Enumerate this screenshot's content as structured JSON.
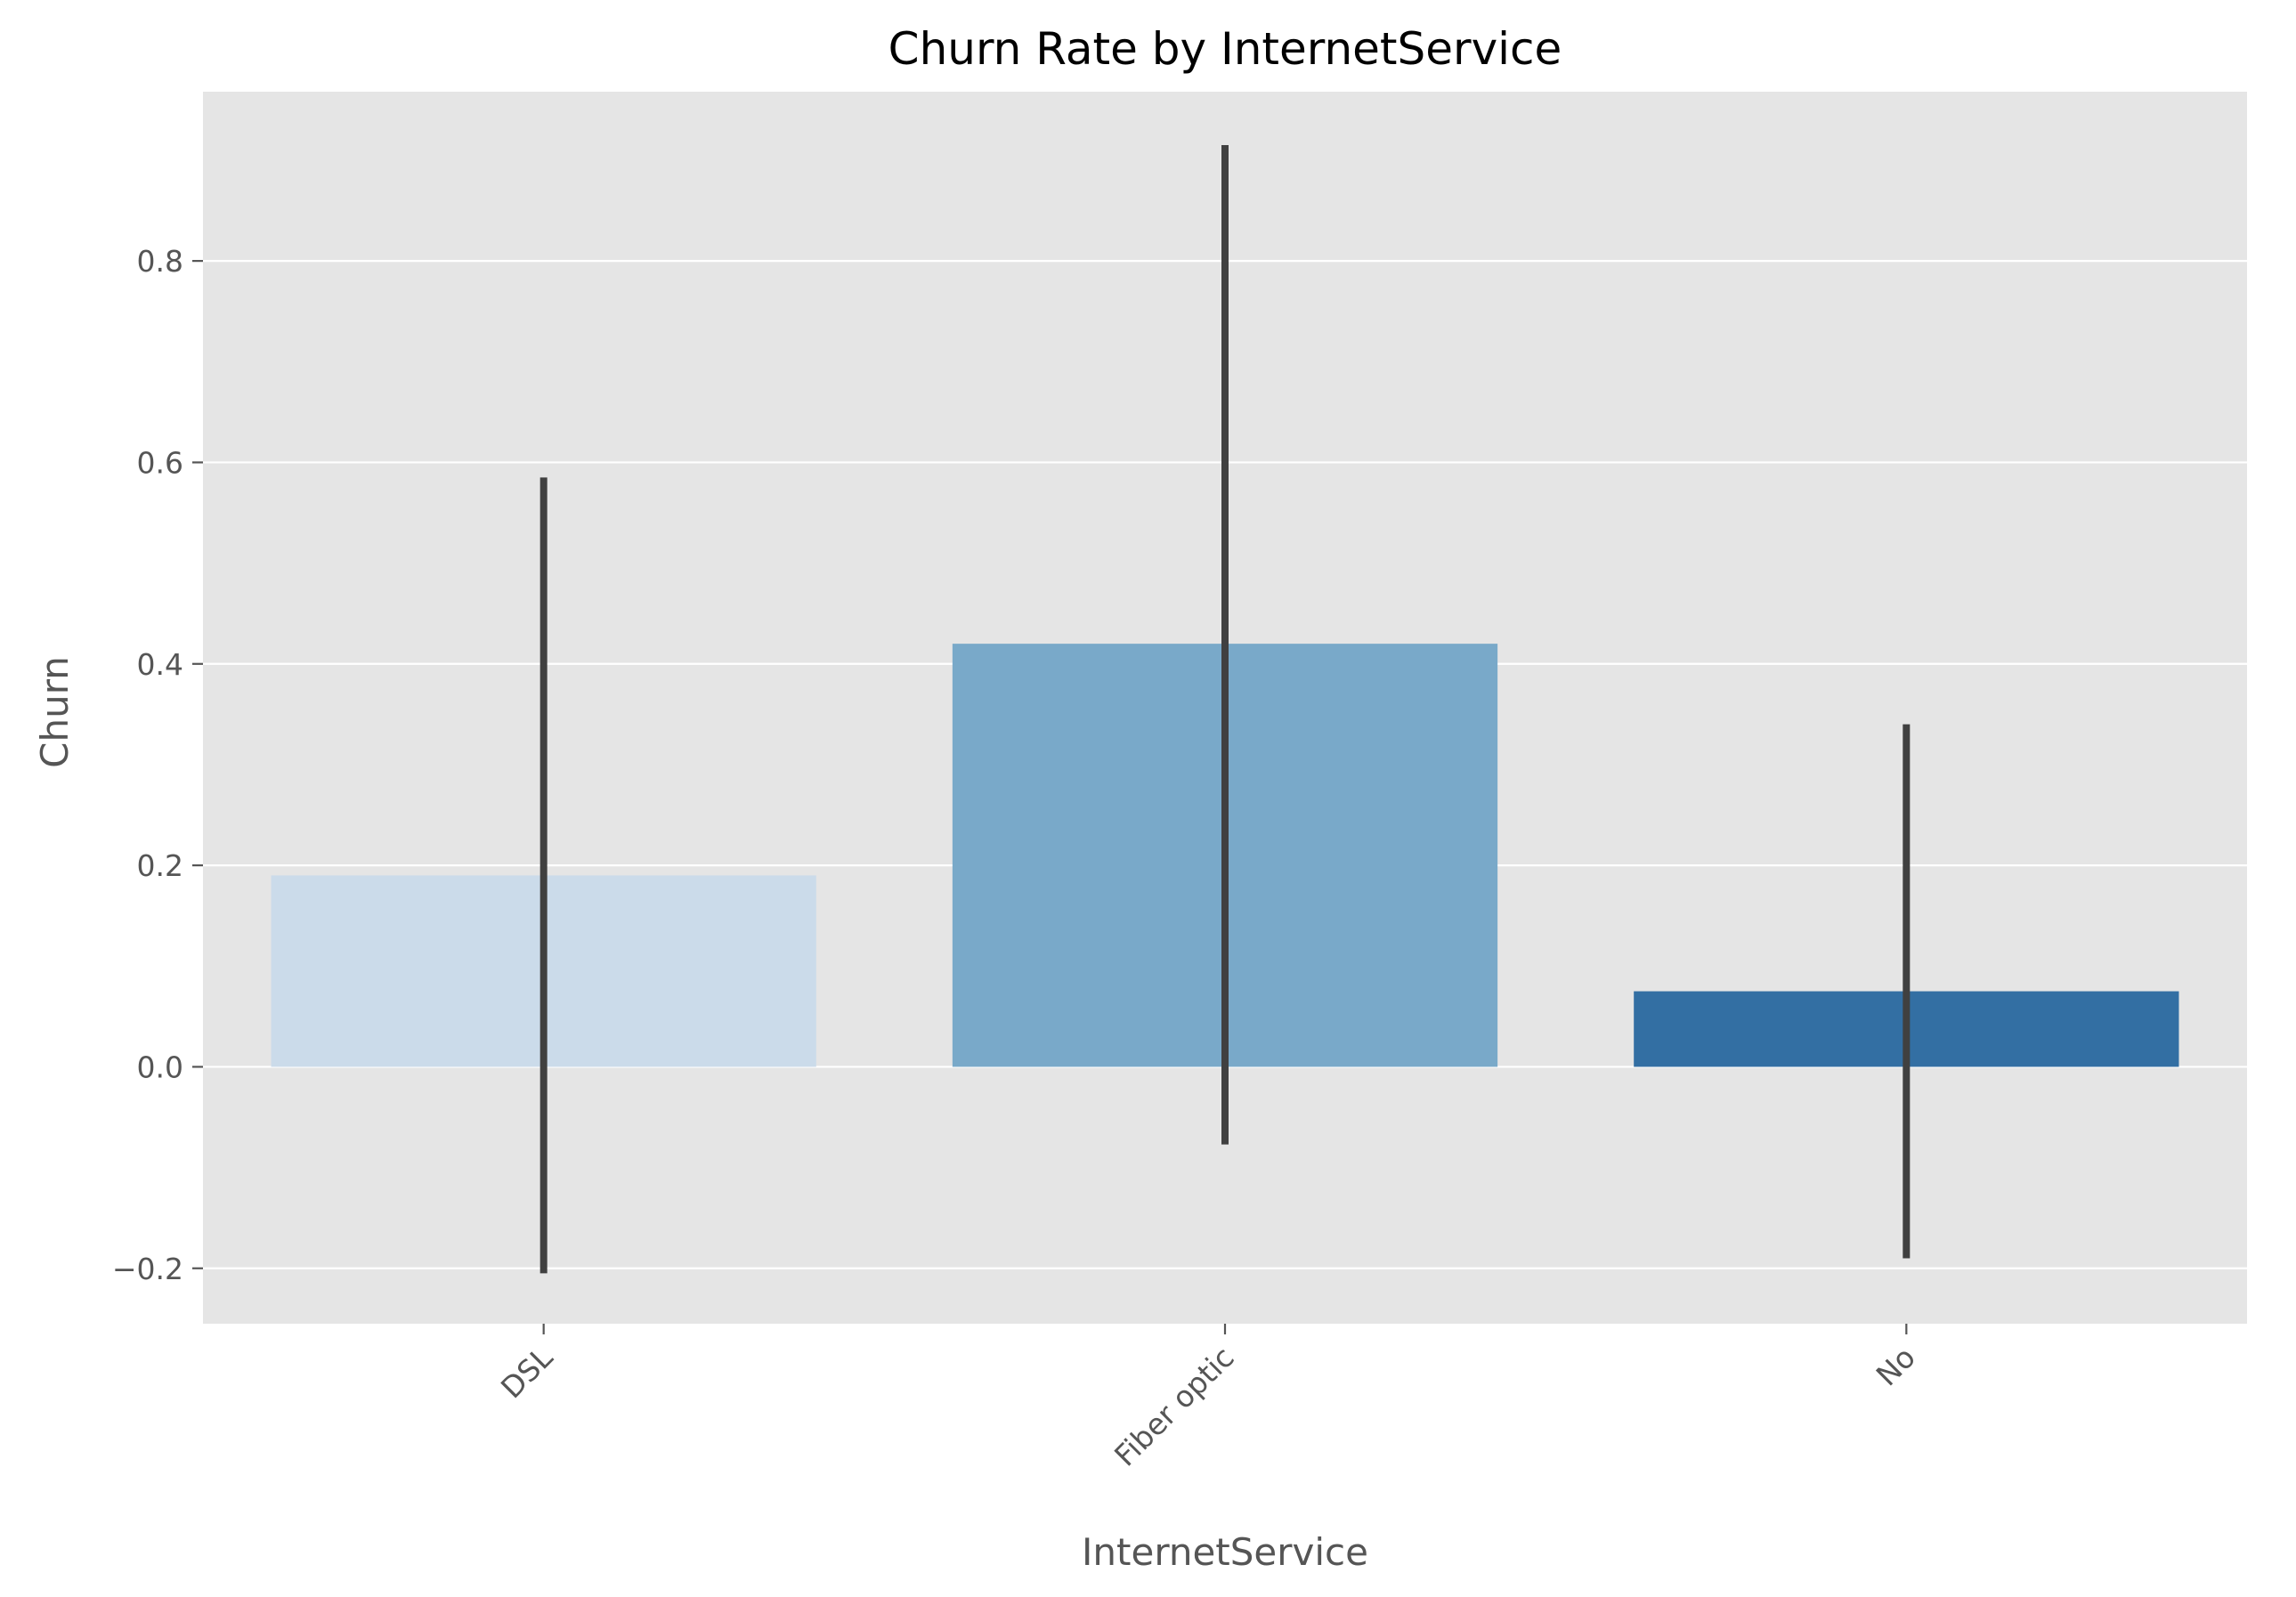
{
  "chart_data": {
    "type": "bar",
    "title": "Churn Rate by InternetService",
    "xlabel": "InternetService",
    "ylabel": "Churn",
    "categories": [
      "DSL",
      "Fiber optic",
      "No"
    ],
    "values": [
      0.19,
      0.42,
      0.075
    ],
    "error_bars": [
      {
        "low": -0.205,
        "high": 0.585
      },
      {
        "low": -0.077,
        "high": 0.915
      },
      {
        "low": -0.19,
        "high": 0.34
      }
    ],
    "bar_colors": [
      "#cbdbea",
      "#79a9c9",
      "#336fa3"
    ],
    "error_bar_color": "#404040",
    "ylim": [
      -0.255,
      0.968
    ],
    "yticks": [
      -0.2,
      0.0,
      0.2,
      0.4,
      0.6,
      0.8
    ],
    "ytick_labels": [
      "−0.2",
      "0.0",
      "0.2",
      "0.4",
      "0.6",
      "0.8"
    ],
    "grid": true,
    "background_color": "#e5e5e5",
    "xtick_rotation": 45
  }
}
